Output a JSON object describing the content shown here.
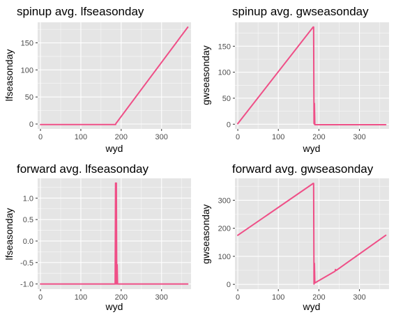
{
  "colors": {
    "panel_bg": "#e5e5e5",
    "grid_major": "#ffffff",
    "line": "#ef4f87",
    "text": "#000000",
    "tick_text": "#4d4d4d"
  },
  "chart_data": [
    {
      "type": "line",
      "title": "spinup avg. lfseasonday",
      "xlabel": "wyd",
      "ylabel": "lfseasonday",
      "xlim": [
        -7,
        373
      ],
      "ylim": [
        -9,
        188
      ],
      "xticks": [
        0,
        100,
        200,
        300
      ],
      "xtick_labels": [
        "0",
        "100",
        "200",
        "300"
      ],
      "yticks": [
        0,
        50,
        100,
        150
      ],
      "ytick_labels": [
        "0",
        "50",
        "100",
        "150"
      ],
      "grid": true,
      "x": [
        0,
        100,
        186,
        187,
        365
      ],
      "y": [
        -1,
        -1,
        -1,
        1,
        179
      ]
    },
    {
      "type": "line",
      "title": "spinup avg. gwseasonday",
      "xlabel": "wyd",
      "ylabel": "gwseasonday",
      "xlim": [
        -7,
        373
      ],
      "ylim": [
        -9,
        196
      ],
      "xticks": [
        0,
        100,
        200,
        300
      ],
      "xtick_labels": [
        "0",
        "100",
        "200",
        "300"
      ],
      "yticks": [
        0,
        50,
        100,
        150
      ],
      "ytick_labels": [
        "0",
        "50",
        "100",
        "150"
      ],
      "grid": true,
      "x": [
        0,
        186,
        187,
        188,
        189,
        190,
        365
      ],
      "y": [
        1,
        187,
        187,
        1,
        40,
        -1,
        -1
      ]
    },
    {
      "type": "line",
      "title": "forward avg. lfseasonday",
      "xlabel": "wyd",
      "ylabel": "lfseasonday",
      "xlim": [
        -7,
        373
      ],
      "ylim": [
        -1.12,
        1.46
      ],
      "xticks": [
        0,
        100,
        200,
        300
      ],
      "xtick_labels": [
        "0",
        "100",
        "200",
        "300"
      ],
      "yticks": [
        -1.0,
        -0.5,
        0.0,
        0.5,
        1.0
      ],
      "ytick_labels": [
        "-1.0",
        "-0.5",
        "0.0",
        "0.5",
        "1.0"
      ],
      "grid": true,
      "x": [
        0,
        185,
        186,
        187,
        188,
        189,
        190,
        191,
        192,
        365
      ],
      "y": [
        -1,
        -1,
        1.35,
        -1,
        1.35,
        -1,
        -0.55,
        -1,
        -1,
        -1
      ]
    },
    {
      "type": "line",
      "title": "forward avg. gwseasonday",
      "xlabel": "wyd",
      "ylabel": "gwseasonday",
      "xlim": [
        -7,
        373
      ],
      "ylim": [
        -17,
        378
      ],
      "xticks": [
        0,
        100,
        200,
        300
      ],
      "xtick_labels": [
        "0",
        "100",
        "200",
        "300"
      ],
      "yticks": [
        0,
        100,
        200,
        300
      ],
      "ytick_labels": [
        "0",
        "100",
        "200",
        "300"
      ],
      "grid": true,
      "x": [
        0,
        186,
        187,
        188,
        189,
        190,
        240,
        241,
        243,
        365
      ],
      "y": [
        175,
        360,
        360,
        1,
        75,
        5,
        47,
        53,
        50,
        175
      ]
    }
  ]
}
